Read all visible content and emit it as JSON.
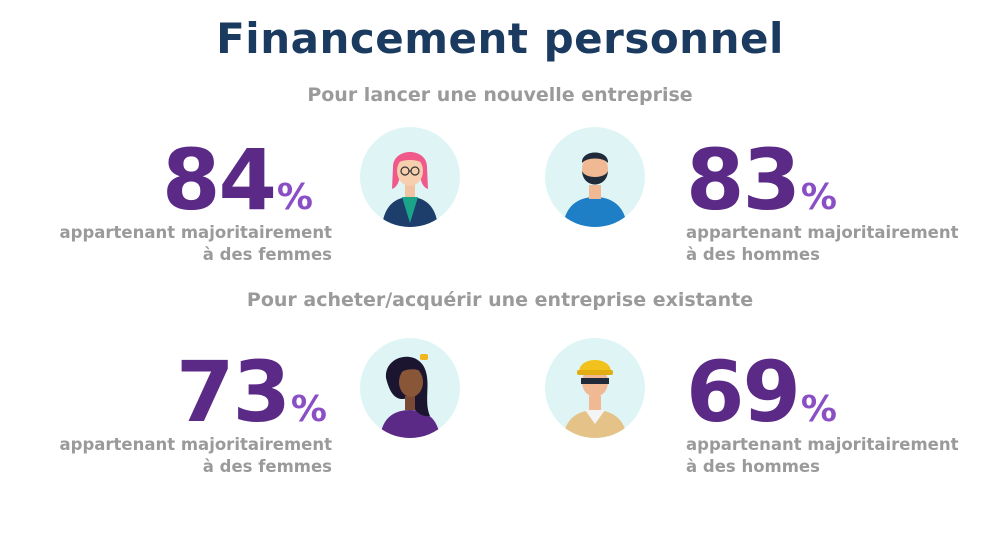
{
  "header": {
    "title": "Financement personnel"
  },
  "sections": [
    {
      "subtitle": "Pour lancer une nouvelle entreprise",
      "women": {
        "value": "84",
        "unit": "%",
        "caption_line1": "appartenant majoritairement",
        "caption_line2": "à des femmes",
        "avatar_icon": "woman-pink-hair-icon"
      },
      "men": {
        "value": "83",
        "unit": "%",
        "caption_line1": "appartenant majoritairement",
        "caption_line2": "à des hommes",
        "avatar_icon": "bearded-man-icon"
      }
    },
    {
      "subtitle": "Pour acheter/acquérir une entreprise existante",
      "women": {
        "value": "73",
        "unit": "%",
        "caption_line1": "appartenant majoritairement",
        "caption_line2": "à des femmes",
        "avatar_icon": "woman-curly-hair-icon"
      },
      "men": {
        "value": "69",
        "unit": "%",
        "caption_line1": "appartenant majoritairement",
        "caption_line2": "à des hommes",
        "avatar_icon": "construction-worker-icon"
      }
    }
  ],
  "colors": {
    "title": "#1a3a5f",
    "numbers": "#5b2a86",
    "percent": "#8a4fc4",
    "captions": "#9a9a9a",
    "avatar_bg": "#dff5f5"
  }
}
